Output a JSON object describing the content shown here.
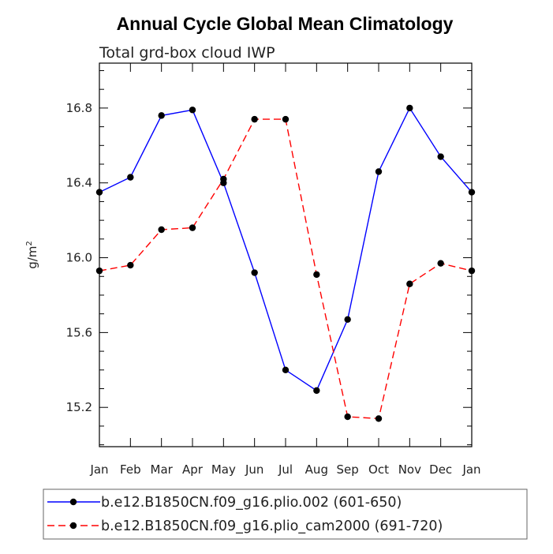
{
  "chart_data": {
    "type": "line",
    "title": "Annual Cycle Global Mean Climatology",
    "subtitle": "Total grd-box cloud IWP",
    "ylabel": "g/m",
    "ylabel_sup": "2",
    "xlabel": "",
    "categories": [
      "Jan",
      "Feb",
      "Mar",
      "Apr",
      "May",
      "Jun",
      "Jul",
      "Aug",
      "Sep",
      "Oct",
      "Nov",
      "Dec",
      "Jan"
    ],
    "ylim": [
      14.99,
      17.04
    ],
    "yticks": [
      15.2,
      15.6,
      16.0,
      16.4,
      16.8
    ],
    "ytick_labels": [
      "15.2",
      "15.6",
      "16.0",
      "16.4",
      "16.8"
    ],
    "legend_position": "bottom",
    "series": [
      {
        "name": "b.e12.B1850CN.f09_g16.plio.002 (601-650)",
        "color": "#0000ff",
        "dash": "solid",
        "marker": "filled-circle",
        "values": [
          16.35,
          16.43,
          16.76,
          16.79,
          16.4,
          15.92,
          15.4,
          15.29,
          15.67,
          16.46,
          16.8,
          16.54,
          16.35
        ]
      },
      {
        "name": "b.e12.B1850CN.f09_g16.plio_cam2000 (691-720)",
        "color": "#ff0000",
        "dash": "dashed",
        "marker": "filled-circle",
        "values": [
          15.93,
          15.96,
          16.15,
          16.16,
          16.42,
          16.74,
          16.74,
          15.91,
          15.15,
          15.14,
          15.86,
          15.97,
          15.93
        ]
      }
    ]
  }
}
